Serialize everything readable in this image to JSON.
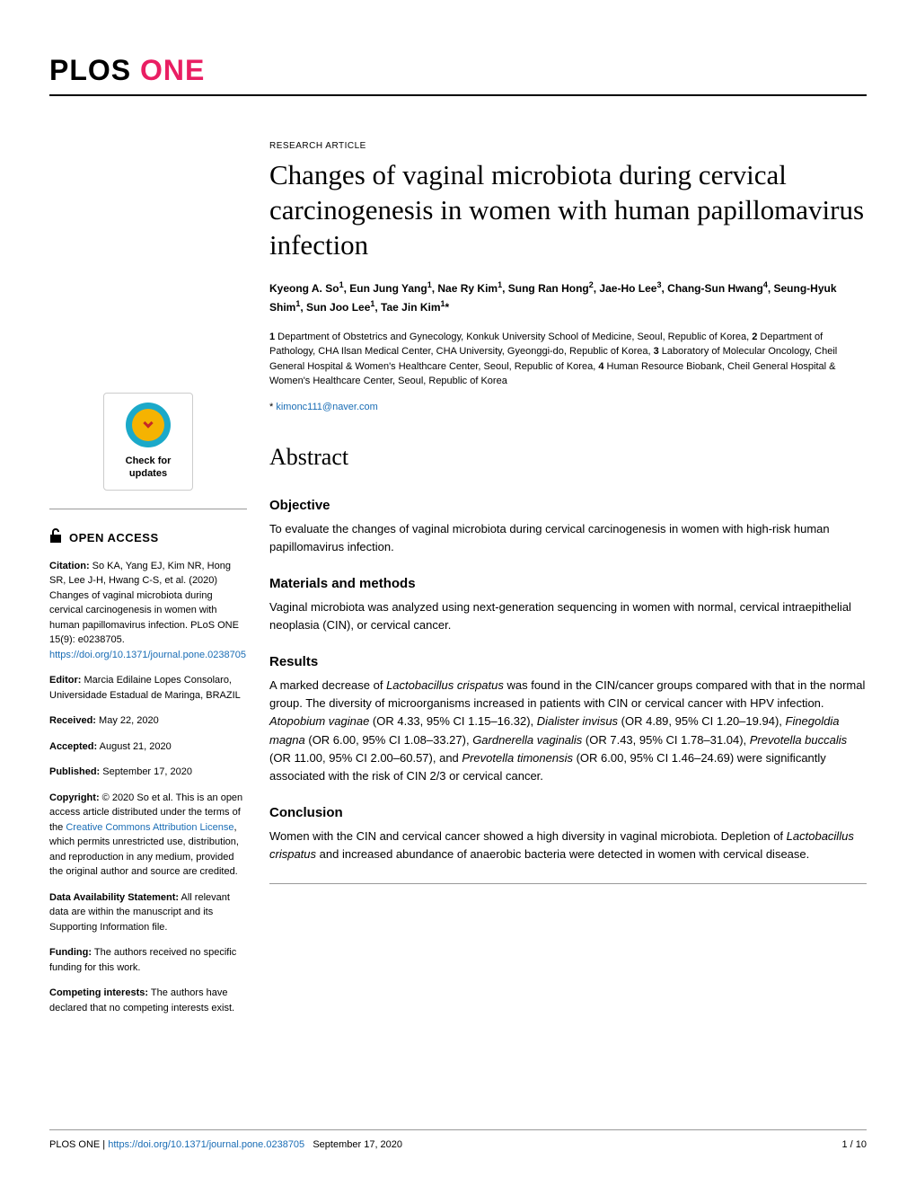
{
  "logo": {
    "plos": "PLOS ",
    "one": "ONE"
  },
  "check_updates": {
    "line1": "Check for",
    "line2": "updates"
  },
  "open_access": "OPEN ACCESS",
  "citation": {
    "label": "Citation:",
    "text": " So KA, Yang EJ, Kim NR, Hong SR, Lee J-H, Hwang C-S, et al. (2020) Changes of vaginal microbiota during cervical carcinogenesis in women with human papillomavirus infection. PLoS ONE 15(9): e0238705. ",
    "link": "https://doi.org/10.1371/journal.pone.0238705"
  },
  "editor": {
    "label": "Editor:",
    "text": " Marcia Edilaine Lopes Consolaro, Universidade Estadual de Maringa, BRAZIL"
  },
  "received": {
    "label": "Received:",
    "text": " May 22, 2020"
  },
  "accepted": {
    "label": "Accepted:",
    "text": " August 21, 2020"
  },
  "published": {
    "label": "Published:",
    "text": " September 17, 2020"
  },
  "copyright": {
    "label": "Copyright:",
    "text1": " © 2020 So et al. This is an open access article distributed under the terms of the ",
    "link": "Creative Commons Attribution License",
    "text2": ", which permits unrestricted use, distribution, and reproduction in any medium, provided the original author and source are credited."
  },
  "data_avail": {
    "label": "Data Availability Statement:",
    "text": " All relevant data are within the manuscript and its Supporting Information file."
  },
  "funding": {
    "label": "Funding:",
    "text": " The authors received no specific funding for this work."
  },
  "competing": {
    "label": "Competing interests:",
    "text": " The authors have declared that no competing interests exist."
  },
  "article_type": "RESEARCH ARTICLE",
  "title": "Changes of vaginal microbiota during cervical carcinogenesis in women with human papillomavirus infection",
  "authors_html": "Kyeong A. So<sup>1</sup>, Eun Jung Yang<sup>1</sup>, Nae Ry Kim<sup>1</sup>, Sung Ran Hong<sup>2</sup>, Jae-Ho Lee<sup>3</sup>, Chang-Sun Hwang<sup>4</sup>, Seung-Hyuk Shim<sup>1</sup>, Sun Joo Lee<sup>1</sup>, Tae Jin Kim<sup>1</sup>*",
  "affiliations_html": "<b>1</b> Department of Obstetrics and Gynecology, Konkuk University School of Medicine, Seoul, Republic of Korea, <b>2</b> Department of Pathology, CHA Ilsan Medical Center, CHA University, Gyeonggi-do, Republic of Korea, <b>3</b> Laboratory of Molecular Oncology, Cheil General Hospital & Women's Healthcare Center, Seoul, Republic of Korea, <b>4</b> Human Resource Biobank, Cheil General Hospital & Women's Healthcare Center, Seoul, Republic of Korea",
  "corresponding": {
    "star": "* ",
    "email": "kimonc111@naver.com"
  },
  "abstract_heading": "Abstract",
  "sections": {
    "objective": {
      "heading": "Objective",
      "text": "To evaluate the changes of vaginal microbiota during cervical carcinogenesis in women with high-risk human papillomavirus infection."
    },
    "methods": {
      "heading": "Materials and methods",
      "text": "Vaginal microbiota was analyzed using next-generation sequencing in women with normal, cervical intraepithelial neoplasia (CIN), or cervical cancer."
    },
    "results": {
      "heading": "Results",
      "html": "A marked decrease of <span class=\"italic\">Lactobacillus crispatus</span> was found in the CIN/cancer groups compared with that in the normal group. The diversity of microorganisms increased in patients with CIN or cervical cancer with HPV infection. <span class=\"italic\">Atopobium vaginae</span> (OR 4.33, 95% CI 1.15–16.32), <span class=\"italic\">Dialister invisus</span> (OR 4.89, 95% CI 1.20–19.94), <span class=\"italic\">Finegoldia magna</span> (OR 6.00, 95% CI 1.08–33.27), <span class=\"italic\">Gardnerella vaginalis</span> (OR 7.43, 95% CI 1.78–31.04), <span class=\"italic\">Prevotella buccalis</span> (OR 11.00, 95% CI 2.00–60.57), and <span class=\"italic\">Prevotella timonensis</span> (OR 6.00, 95% CI 1.46–24.69) were significantly associated with the risk of CIN 2/3 or cervical cancer."
    },
    "conclusion": {
      "heading": "Conclusion",
      "html": "Women with the CIN and cervical cancer showed a high diversity in vaginal microbiota. Depletion of <span class=\"italic\">Lactobacillus crispatus</span> and increased abundance of anaerobic bacteria were detected in women with cervical disease."
    }
  },
  "footer": {
    "journal": "PLOS ONE | ",
    "doi": "https://doi.org/10.1371/journal.pone.0238705",
    "date": "September 17, 2020",
    "page": "1 / 10"
  }
}
